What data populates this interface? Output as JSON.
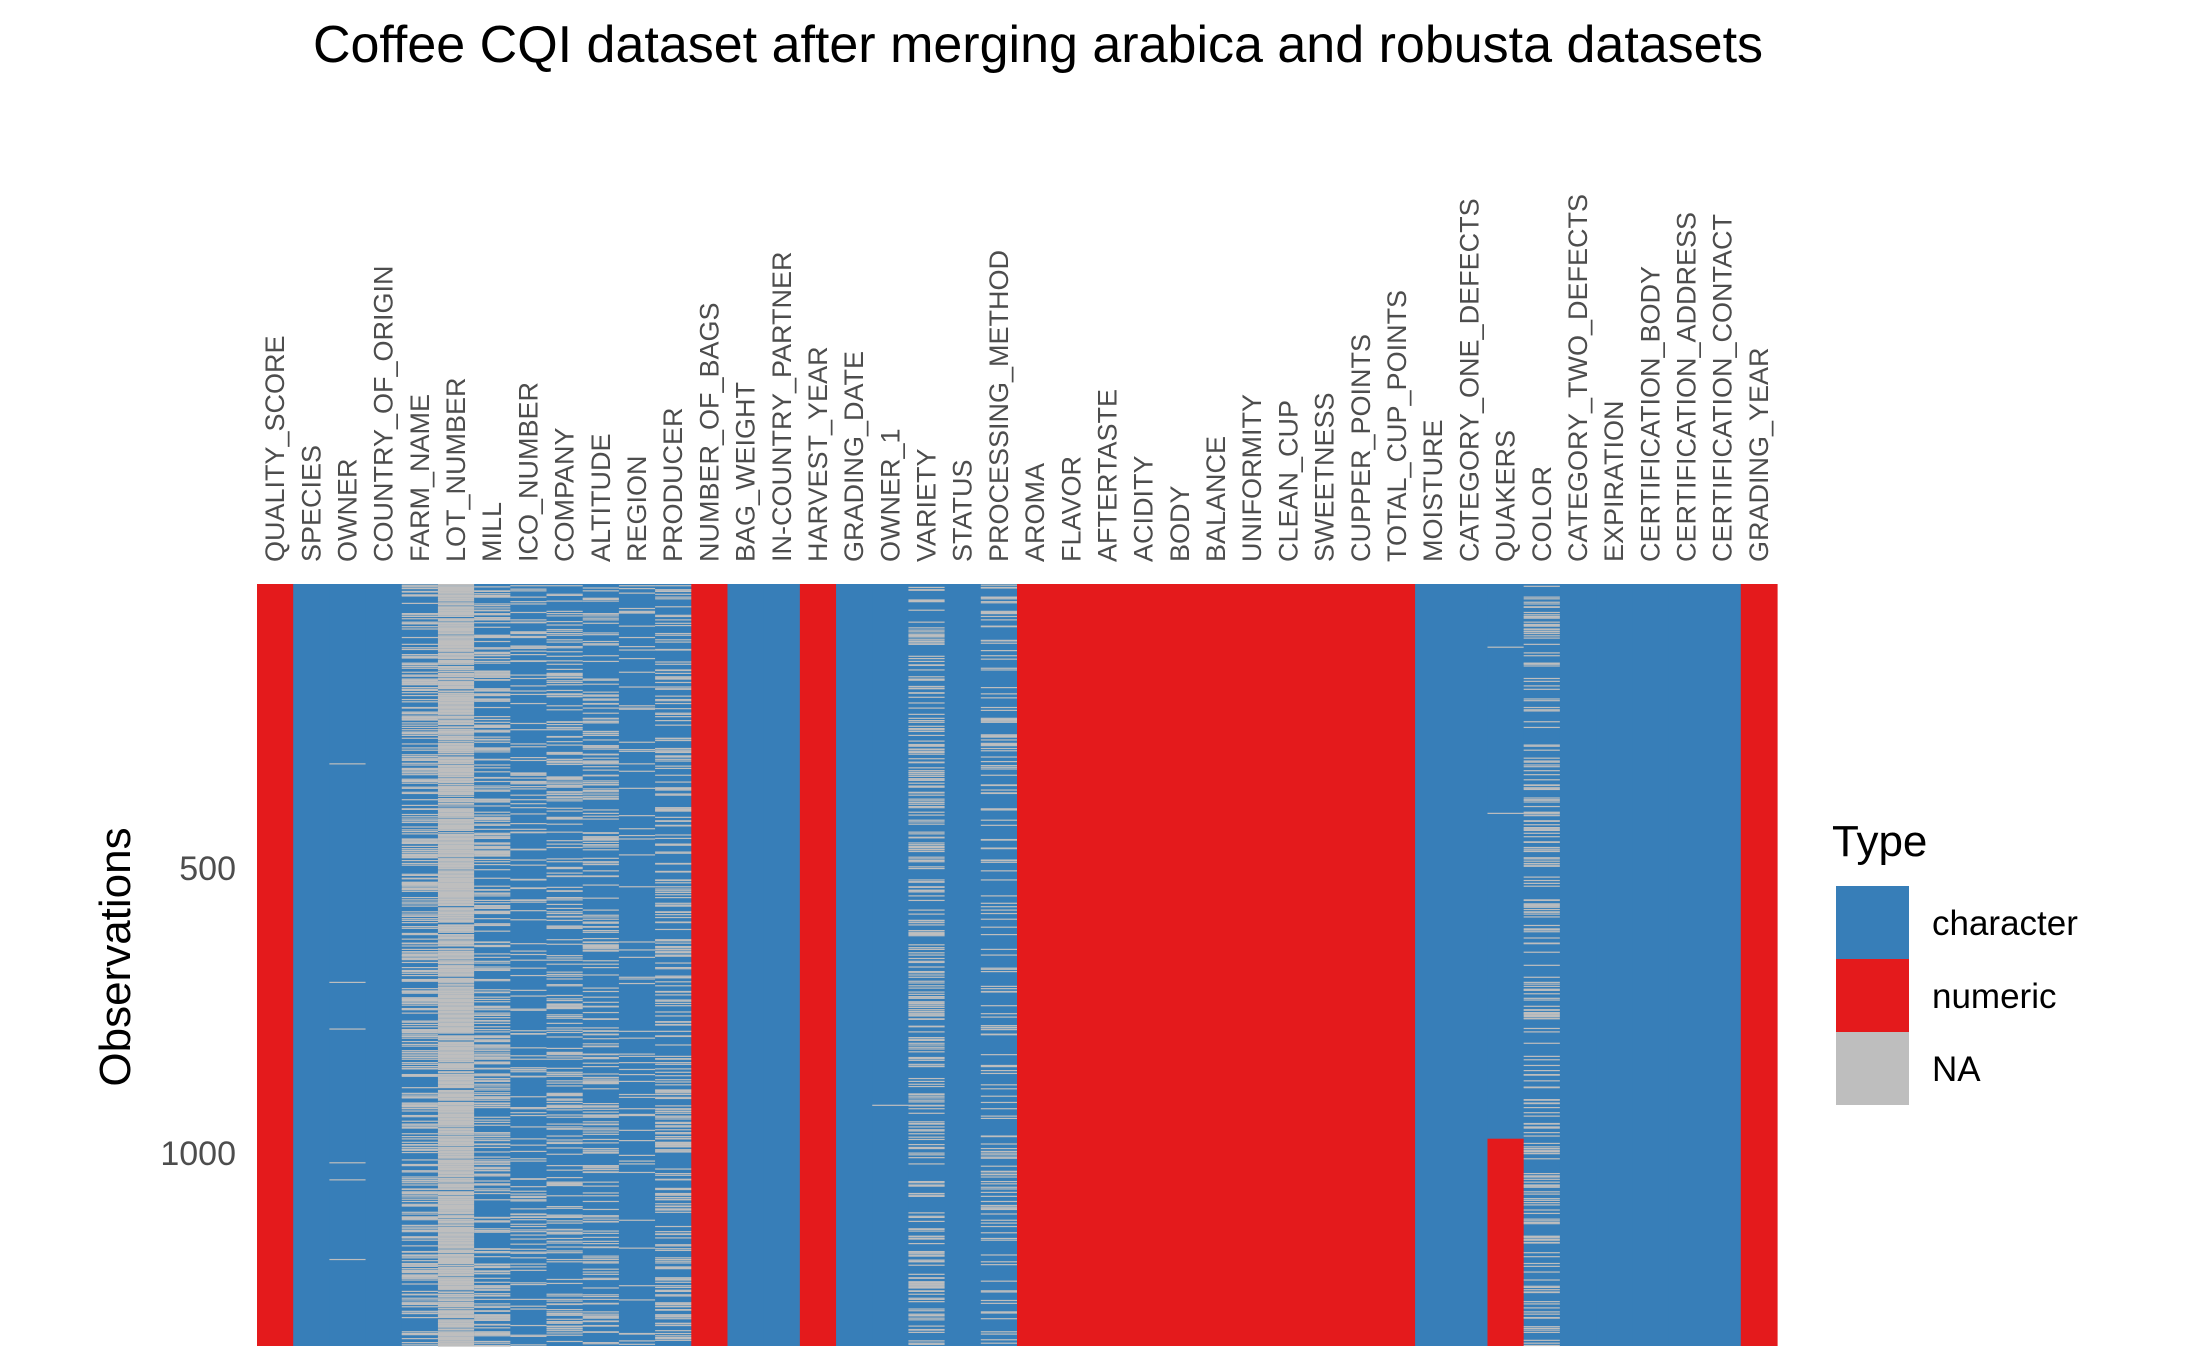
{
  "chart_data": {
    "type": "heatmap",
    "title": "Coffee CQI dataset after merging arabica and robusta datasets",
    "ylabel": "Observations",
    "ylim": [
      1,
      1339
    ],
    "y_ticks": [
      500,
      1000
    ],
    "y_tick_labels": [
      "500",
      "1000"
    ],
    "columns": [
      {
        "name": "QUALITY_SCORE",
        "type": "numeric",
        "na_fraction": 0
      },
      {
        "name": "SPECIES",
        "type": "character",
        "na_fraction": 0
      },
      {
        "name": "OWNER",
        "type": "character",
        "na_fraction": 0.005
      },
      {
        "name": "COUNTRY_OF_ORIGIN",
        "type": "character",
        "na_fraction": 0
      },
      {
        "name": "FARM_NAME",
        "type": "character",
        "na_fraction": 0.27
      },
      {
        "name": "LOT_NUMBER",
        "type": "character",
        "na_fraction": 0.79
      },
      {
        "name": "MILL",
        "type": "character",
        "na_fraction": 0.23
      },
      {
        "name": "ICO_NUMBER",
        "type": "character",
        "na_fraction": 0.11
      },
      {
        "name": "COMPANY",
        "type": "character",
        "na_fraction": 0.16
      },
      {
        "name": "ALTITUDE",
        "type": "character",
        "na_fraction": 0.17
      },
      {
        "name": "REGION",
        "type": "character",
        "na_fraction": 0.04
      },
      {
        "name": "PRODUCER",
        "type": "character",
        "na_fraction": 0.17
      },
      {
        "name": "NUMBER_OF_BAGS",
        "type": "numeric",
        "na_fraction": 0
      },
      {
        "name": "BAG_WEIGHT",
        "type": "character",
        "na_fraction": 0
      },
      {
        "name": "IN-COUNTRY_PARTNER",
        "type": "character",
        "na_fraction": 0
      },
      {
        "name": "HARVEST_YEAR",
        "type": "numeric",
        "na_fraction": 0
      },
      {
        "name": "GRADING_DATE",
        "type": "character",
        "na_fraction": 0
      },
      {
        "name": "OWNER_1",
        "type": "character",
        "na_fraction": 0.005
      },
      {
        "name": "VARIETY",
        "type": "character",
        "na_fraction": 0.17
      },
      {
        "name": "STATUS",
        "type": "character",
        "na_fraction": 0
      },
      {
        "name": "PROCESSING_METHOD",
        "type": "character",
        "na_fraction": 0.13
      },
      {
        "name": "AROMA",
        "type": "numeric",
        "na_fraction": 0
      },
      {
        "name": "FLAVOR",
        "type": "numeric",
        "na_fraction": 0
      },
      {
        "name": "AFTERTASTE",
        "type": "numeric",
        "na_fraction": 0
      },
      {
        "name": "ACIDITY",
        "type": "numeric",
        "na_fraction": 0
      },
      {
        "name": "BODY",
        "type": "numeric",
        "na_fraction": 0
      },
      {
        "name": "BALANCE",
        "type": "numeric",
        "na_fraction": 0
      },
      {
        "name": "UNIFORMITY",
        "type": "numeric",
        "na_fraction": 0
      },
      {
        "name": "CLEAN_CUP",
        "type": "numeric",
        "na_fraction": 0
      },
      {
        "name": "SWEETNESS",
        "type": "numeric",
        "na_fraction": 0
      },
      {
        "name": "CUPPER_POINTS",
        "type": "numeric",
        "na_fraction": 0
      },
      {
        "name": "TOTAL_CUP_POINTS",
        "type": "numeric",
        "na_fraction": 0
      },
      {
        "name": "MOISTURE",
        "type": "character",
        "na_fraction": 0
      },
      {
        "name": "CATEGORY_ONE_DEFECTS",
        "type": "character",
        "na_fraction": 0
      },
      {
        "name": "QUAKERS",
        "type": "character",
        "na_fraction": 0.001,
        "numeric_from_row": 975
      },
      {
        "name": "COLOR",
        "type": "character",
        "na_fraction": 0.16
      },
      {
        "name": "CATEGORY_TWO_DEFECTS",
        "type": "character",
        "na_fraction": 0
      },
      {
        "name": "EXPIRATION",
        "type": "character",
        "na_fraction": 0
      },
      {
        "name": "CERTIFICATION_BODY",
        "type": "character",
        "na_fraction": 0
      },
      {
        "name": "CERTIFICATION_ADDRESS",
        "type": "character",
        "na_fraction": 0
      },
      {
        "name": "CERTIFICATION_CONTACT",
        "type": "character",
        "na_fraction": 0
      },
      {
        "name": "GRADING_YEAR",
        "type": "numeric",
        "na_fraction": 0
      }
    ],
    "legend": {
      "title": "Type",
      "position": "right",
      "items": [
        {
          "label": "character",
          "color": "#377eb8"
        },
        {
          "label": "numeric",
          "color": "#e41a1c"
        },
        {
          "label": "NA",
          "color": "#bebebe"
        }
      ]
    },
    "grid": false
  }
}
